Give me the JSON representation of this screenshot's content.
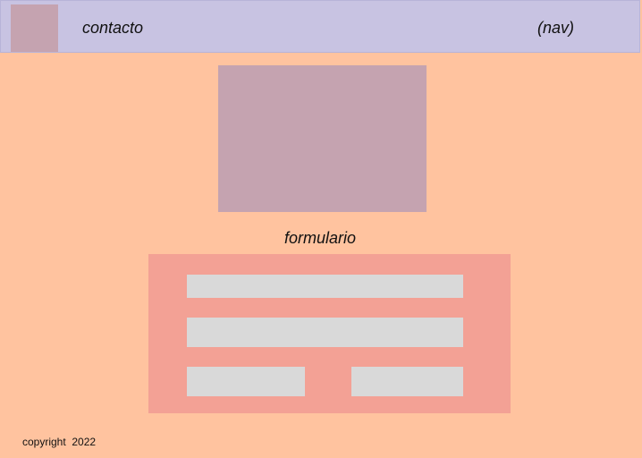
{
  "header": {
    "title": "contacto",
    "nav": "(nav)"
  },
  "form": {
    "title": "formulario"
  },
  "footer": {
    "copyright": "copyright  2022"
  },
  "colors": {
    "page_background": "#FFC39F",
    "header_background": "#C8C3E2",
    "placeholder_image": "#C5A3B0",
    "form_background": "#F3A195",
    "field_background": "#D9D9D9"
  }
}
